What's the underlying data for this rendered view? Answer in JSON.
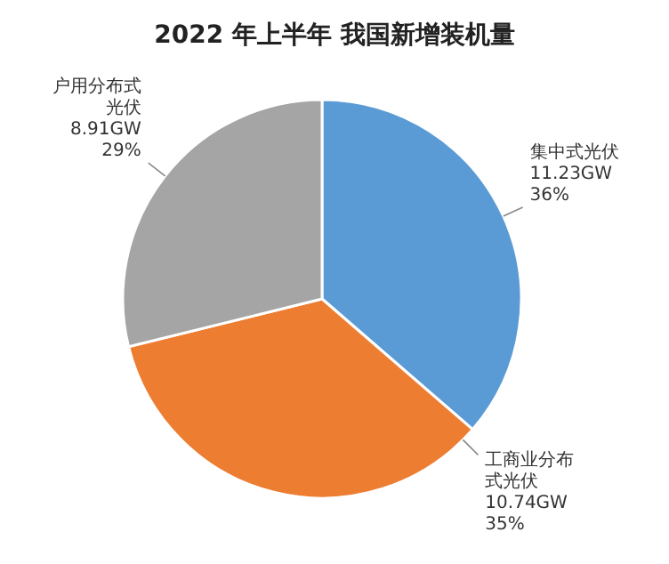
{
  "chart_data": {
    "type": "pie",
    "title": "2022 年上半年  我国新增装机量",
    "categories": [
      "集中式光伏",
      "工商业分布式光伏",
      "户用分布式光伏"
    ],
    "values": [
      11.23,
      10.74,
      8.91
    ],
    "value_labels": [
      "11.23GW\n36%",
      "10.74GW\n35%",
      "8.91GW\n29%"
    ],
    "colors": [
      "#5b9bd5",
      "#ed7d31",
      "#a5a5a5"
    ]
  }
}
